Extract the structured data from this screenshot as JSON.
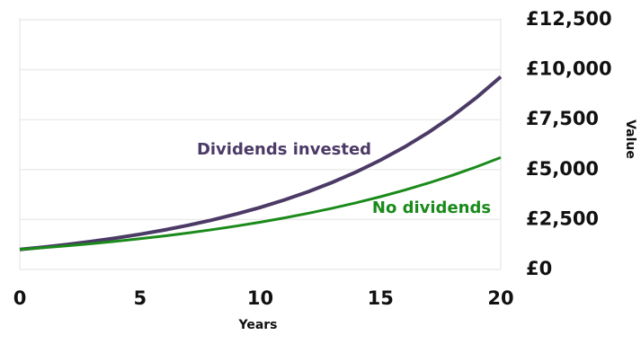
{
  "chart_data": {
    "type": "line",
    "x_label": "Years",
    "y_label": "Value",
    "x": [
      0,
      1,
      2,
      3,
      4,
      5,
      6,
      7,
      8,
      9,
      10,
      11,
      12,
      13,
      14,
      15,
      16,
      17,
      18,
      19,
      20
    ],
    "series": [
      {
        "name": "Dividends invested",
        "color": "#4b3a66",
        "values": [
          1000,
          1120,
          1254,
          1405,
          1574,
          1762,
          1974,
          2211,
          2476,
          2773,
          3106,
          3479,
          3896,
          4363,
          4887,
          5474,
          6130,
          6866,
          7690,
          8613,
          9646
        ]
      },
      {
        "name": "No dividends",
        "color": "#1a8a1a",
        "values": [
          1000,
          1090,
          1188,
          1295,
          1412,
          1539,
          1677,
          1828,
          1993,
          2172,
          2367,
          2580,
          2813,
          3066,
          3342,
          3642,
          3970,
          4328,
          4717,
          5142,
          5604
        ]
      }
    ],
    "xlim": [
      0,
      20
    ],
    "xticks": [
      0,
      5,
      10,
      15,
      20
    ],
    "ylim": [
      0,
      12500
    ],
    "yticks": [
      {
        "value": 0,
        "label": "£0"
      },
      {
        "value": 2500,
        "label": "£2,500"
      },
      {
        "value": 5000,
        "label": "£5,000"
      },
      {
        "value": 7500,
        "label": "£7,500"
      },
      {
        "value": 10000,
        "label": "£10,000"
      },
      {
        "value": 12500,
        "label": "£12,500"
      }
    ],
    "grid": true
  }
}
